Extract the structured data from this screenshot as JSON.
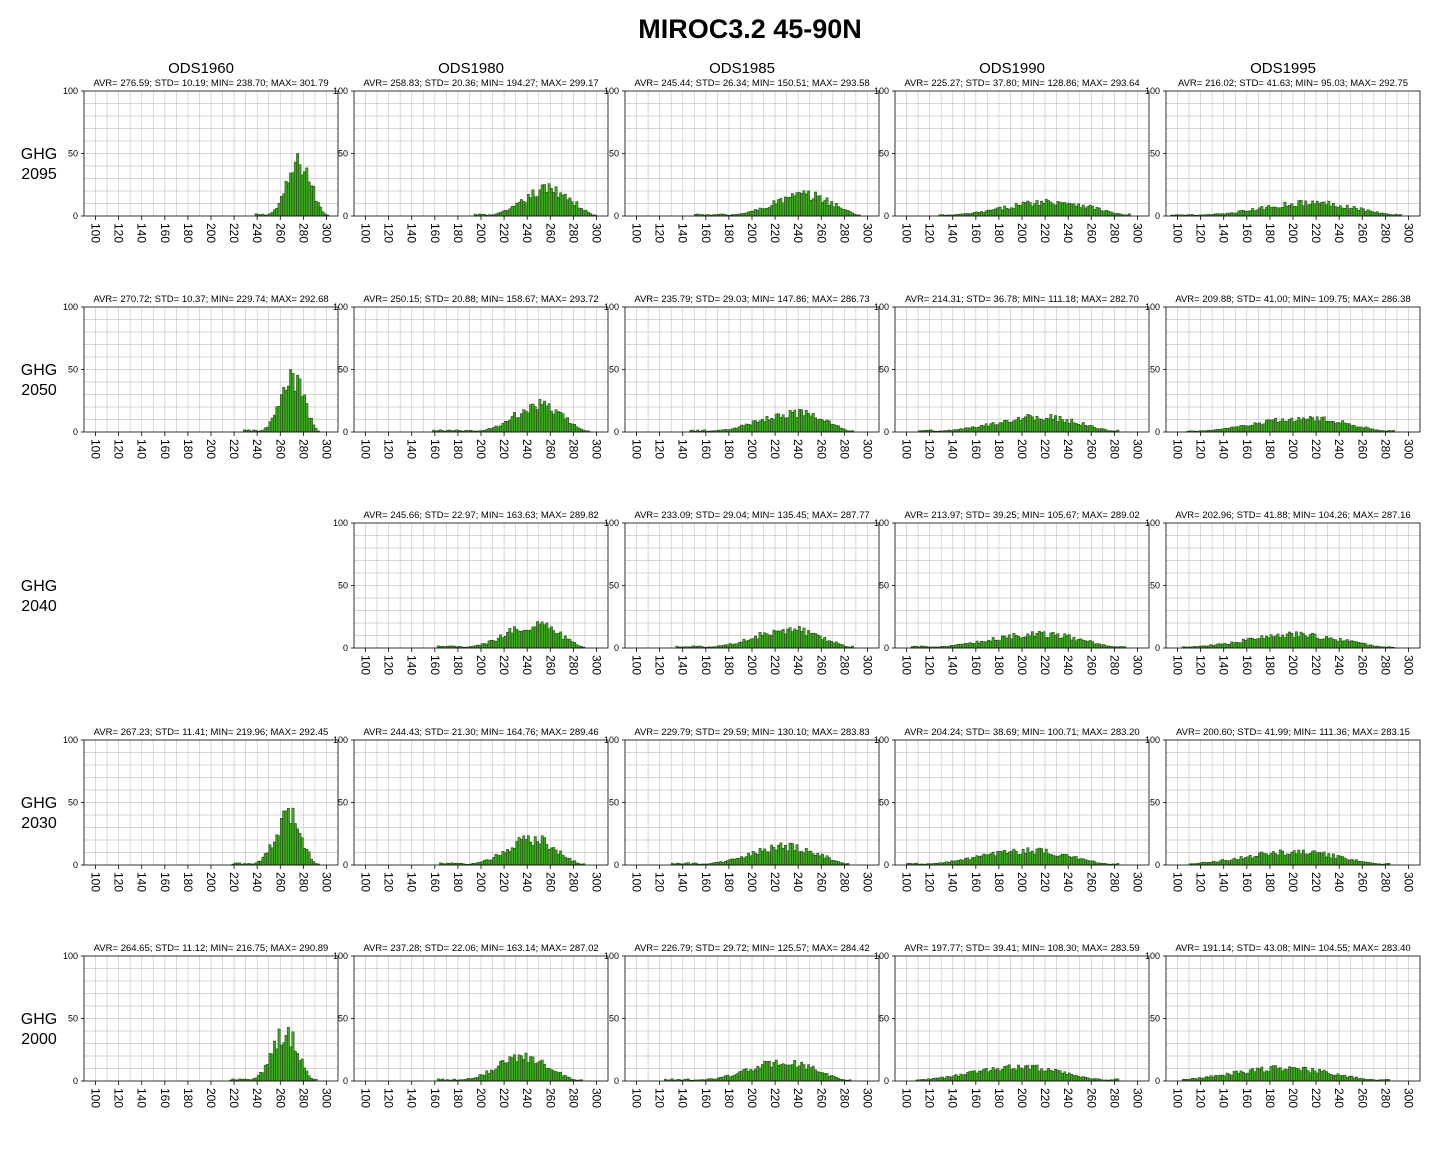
{
  "title": "MIROC3.2  45-90N",
  "columns": [
    "ODS1960",
    "ODS1980",
    "ODS1985",
    "ODS1990",
    "ODS1995"
  ],
  "rows": [
    {
      "label_top": "GHG",
      "label_bottom": "2095"
    },
    {
      "label_top": "GHG",
      "label_bottom": "2050"
    },
    {
      "label_top": "GHG",
      "label_bottom": "2040"
    },
    {
      "label_top": "GHG",
      "label_bottom": "2030"
    },
    {
      "label_top": "GHG",
      "label_bottom": "2000"
    }
  ],
  "colors": {
    "bar_fill": "#3dab1e",
    "bar_edge": "#1a3a10",
    "grid": "#c8c8c8"
  },
  "chart_data": {
    "type": "bar",
    "xlim": [
      90,
      310
    ],
    "ylim": [
      0,
      100
    ],
    "xticks": [
      "100",
      "120",
      "140",
      "160",
      "180",
      "200",
      "220",
      "240",
      "260",
      "280",
      "300"
    ],
    "yticks": [
      "0",
      "50",
      "100"
    ],
    "bin_width": 2,
    "grid": true,
    "panels": [
      {
        "row": 0,
        "col": 0,
        "stats": "AVR= 276.59;  STD= 10.19;  MIN= 238.70;  MAX= 301.79",
        "avr": 276.59,
        "std": 10.19,
        "min": 238.7,
        "max": 301.79
      },
      {
        "row": 0,
        "col": 1,
        "stats": "AVR= 258.83;  STD= 20.36;  MIN= 194.27;  MAX= 299.17",
        "avr": 258.83,
        "std": 20.36,
        "min": 194.27,
        "max": 299.17
      },
      {
        "row": 0,
        "col": 2,
        "stats": "AVR= 245.44;  STD= 26.34;  MIN= 150.51;  MAX= 293.58",
        "avr": 245.44,
        "std": 26.34,
        "min": 150.51,
        "max": 293.58
      },
      {
        "row": 0,
        "col": 3,
        "stats": "AVR= 225.27;  STD= 37.80;  MIN= 128.86;  MAX= 293.64",
        "avr": 225.27,
        "std": 37.8,
        "min": 128.86,
        "max": 293.64
      },
      {
        "row": 0,
        "col": 4,
        "stats": "AVR= 216.02;  STD= 41.63;  MIN= 95.03;  MAX= 292.75",
        "avr": 216.02,
        "std": 41.63,
        "min": 95.03,
        "max": 292.75
      },
      {
        "row": 1,
        "col": 0,
        "stats": "AVR= 270.72;  STD= 10.37;  MIN= 229.74;  MAX= 292.68",
        "avr": 270.72,
        "std": 10.37,
        "min": 229.74,
        "max": 292.68
      },
      {
        "row": 1,
        "col": 1,
        "stats": "AVR= 250.15;  STD= 20.88;  MIN= 158.67;  MAX= 293.72",
        "avr": 250.15,
        "std": 20.88,
        "min": 158.67,
        "max": 293.72
      },
      {
        "row": 1,
        "col": 2,
        "stats": "AVR= 235.79;  STD= 29.03;  MIN= 147.86;  MAX= 286.73",
        "avr": 235.79,
        "std": 29.03,
        "min": 147.86,
        "max": 286.73
      },
      {
        "row": 1,
        "col": 3,
        "stats": "AVR= 214.31;  STD= 36.78;  MIN= 111.18;  MAX= 282.70",
        "avr": 214.31,
        "std": 36.78,
        "min": 111.18,
        "max": 282.7
      },
      {
        "row": 1,
        "col": 4,
        "stats": "AVR= 209.88;  STD= 41.00;  MIN= 109.75;  MAX= 286.38",
        "avr": 209.88,
        "std": 41.0,
        "min": 109.75,
        "max": 286.38
      },
      {
        "row": 2,
        "col": 1,
        "stats": "AVR= 245.66;  STD= 22.97;  MIN= 163.63;  MAX= 289.82",
        "avr": 245.66,
        "std": 22.97,
        "min": 163.63,
        "max": 289.82
      },
      {
        "row": 2,
        "col": 2,
        "stats": "AVR= 233.09;  STD= 29.04;  MIN= 135.45;  MAX= 287.77",
        "avr": 233.09,
        "std": 29.04,
        "min": 135.45,
        "max": 287.77
      },
      {
        "row": 2,
        "col": 3,
        "stats": "AVR= 213.97;  STD= 39.25;  MIN= 105.67;  MAX= 289.02",
        "avr": 213.97,
        "std": 39.25,
        "min": 105.67,
        "max": 289.02
      },
      {
        "row": 2,
        "col": 4,
        "stats": "AVR= 202.96;  STD= 41.88;  MIN= 104.26;  MAX= 287.16",
        "avr": 202.96,
        "std": 41.88,
        "min": 104.26,
        "max": 287.16
      },
      {
        "row": 3,
        "col": 0,
        "stats": "AVR= 267.23;  STD= 11.41;  MIN= 219.96;  MAX= 292.45",
        "avr": 267.23,
        "std": 11.41,
        "min": 219.96,
        "max": 292.45
      },
      {
        "row": 3,
        "col": 1,
        "stats": "AVR= 244.43;  STD= 21.30;  MIN= 164.76;  MAX= 289.46",
        "avr": 244.43,
        "std": 21.3,
        "min": 164.76,
        "max": 289.46
      },
      {
        "row": 3,
        "col": 2,
        "stats": "AVR= 229.79;  STD= 29.59;  MIN= 130.10;  MAX= 283.83",
        "avr": 229.79,
        "std": 29.59,
        "min": 130.1,
        "max": 283.83
      },
      {
        "row": 3,
        "col": 3,
        "stats": "AVR= 204.24;  STD= 38.69;  MIN= 100.71;  MAX= 283.20",
        "avr": 204.24,
        "std": 38.69,
        "min": 100.71,
        "max": 283.2
      },
      {
        "row": 3,
        "col": 4,
        "stats": "AVR= 200.60;  STD= 41.99;  MIN= 111.36;  MAX= 283.15",
        "avr": 200.6,
        "std": 41.99,
        "min": 111.36,
        "max": 283.15
      },
      {
        "row": 4,
        "col": 0,
        "stats": "AVR= 264.65;  STD= 11.12;  MIN= 216.75;  MAX= 290.89",
        "avr": 264.65,
        "std": 11.12,
        "min": 216.75,
        "max": 290.89
      },
      {
        "row": 4,
        "col": 1,
        "stats": "AVR= 237.28;  STD= 22.06;  MIN= 163.14;  MAX= 287.02",
        "avr": 237.28,
        "std": 22.06,
        "min": 163.14,
        "max": 287.02
      },
      {
        "row": 4,
        "col": 2,
        "stats": "AVR= 226.79;  STD= 29.72;  MIN= 125.57;  MAX= 284.42",
        "avr": 226.79,
        "std": 29.72,
        "min": 125.57,
        "max": 284.42
      },
      {
        "row": 4,
        "col": 3,
        "stats": "AVR= 197.77;  STD= 39.41;  MIN= 108.30;  MAX= 283.59",
        "avr": 197.77,
        "std": 39.41,
        "min": 108.3,
        "max": 283.59
      },
      {
        "row": 4,
        "col": 4,
        "stats": "AVR= 191.14;  STD= 43.08;  MIN= 104.55;  MAX= 283.40",
        "avr": 191.14,
        "std": 43.08,
        "min": 104.55,
        "max": 283.4
      }
    ]
  }
}
